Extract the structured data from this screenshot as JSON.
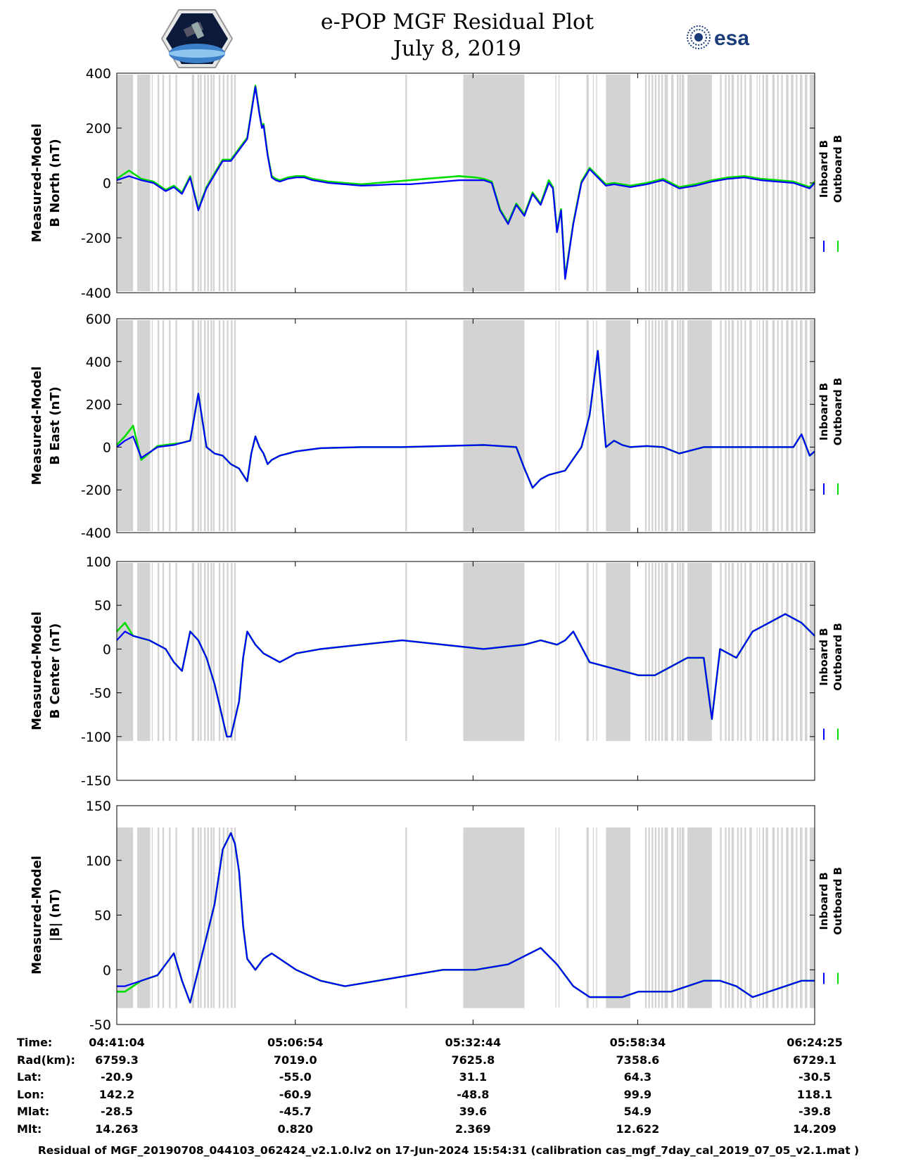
{
  "header": {
    "title_line1": "e-POP MGF Residual Plot",
    "title_line2": "July 8, 2019",
    "logo_left": "CASSIOPE",
    "logo_right": "esa"
  },
  "colors": {
    "inboard": "#0000ff",
    "outboard": "#00dd00",
    "gap_shading": "#d3d3d3"
  },
  "chart_data": [
    {
      "type": "line",
      "ylabel": [
        "Measured-Model",
        "B North (nT)"
      ],
      "ylim": [
        -400,
        400
      ],
      "yticks": [
        -400,
        -200,
        0,
        200,
        400
      ],
      "x": [
        0,
        150,
        300,
        450,
        600,
        700,
        800,
        900,
        1000,
        1100,
        1200,
        1300,
        1400,
        1500,
        1600,
        1700,
        1750,
        1780,
        1800,
        1850,
        1900,
        1950,
        2000,
        2100,
        2200,
        2300,
        2400,
        2500,
        2600,
        2800,
        3000,
        3200,
        3400,
        3600,
        3800,
        4000,
        4200,
        4400,
        4500,
        4600,
        4700,
        4800,
        4900,
        5000,
        5100,
        5200,
        5300,
        5350,
        5400,
        5450,
        5500,
        5600,
        5700,
        5800,
        5900,
        6000,
        6100,
        6300,
        6500,
        6700,
        6900,
        7100,
        7300,
        7500,
        7700,
        7900,
        8100,
        8300,
        8500,
        8561
      ],
      "series": [
        {
          "name": "Inboard B",
          "values": [
            10,
            25,
            10,
            0,
            -30,
            -15,
            -40,
            20,
            -100,
            -20,
            30,
            80,
            80,
            120,
            160,
            350,
            250,
            200,
            210,
            100,
            20,
            10,
            5,
            15,
            20,
            20,
            10,
            5,
            0,
            -5,
            -10,
            -8,
            -5,
            -5,
            0,
            5,
            10,
            10,
            10,
            0,
            -100,
            -150,
            -80,
            -120,
            -40,
            -80,
            0,
            -20,
            -180,
            -100,
            -350,
            -150,
            0,
            50,
            20,
            -10,
            -5,
            -15,
            -5,
            10,
            -20,
            -10,
            5,
            15,
            20,
            10,
            5,
            0,
            -20,
            0
          ]
        },
        {
          "name": "Outboard B",
          "values": [
            15,
            45,
            15,
            5,
            -25,
            -10,
            -35,
            25,
            -95,
            -15,
            35,
            85,
            85,
            125,
            165,
            355,
            255,
            205,
            215,
            105,
            25,
            15,
            10,
            20,
            25,
            25,
            15,
            10,
            5,
            0,
            -5,
            0,
            5,
            10,
            15,
            20,
            25,
            20,
            15,
            5,
            -95,
            -145,
            -75,
            -115,
            -35,
            -75,
            10,
            -15,
            -175,
            -95,
            -345,
            -145,
            5,
            55,
            25,
            -5,
            0,
            -10,
            0,
            15,
            -15,
            -5,
            10,
            20,
            25,
            15,
            10,
            5,
            -15,
            5
          ]
        }
      ]
    },
    {
      "type": "line",
      "ylabel": [
        "Measured-Model",
        "B East (nT)"
      ],
      "ylim": [
        -400,
        600
      ],
      "yticks": [
        -400,
        -200,
        0,
        200,
        400,
        600
      ],
      "x": [
        0,
        100,
        200,
        300,
        500,
        700,
        800,
        900,
        1000,
        1100,
        1200,
        1300,
        1400,
        1500,
        1600,
        1650,
        1700,
        1750,
        1800,
        1850,
        1900,
        2000,
        2200,
        2500,
        3000,
        3500,
        4000,
        4500,
        4900,
        5000,
        5100,
        5200,
        5300,
        5500,
        5700,
        5800,
        5900,
        6000,
        6100,
        6200,
        6300,
        6500,
        6700,
        6900,
        7200,
        7500,
        7800,
        8100,
        8300,
        8400,
        8500,
        8561
      ],
      "series": [
        {
          "name": "Inboard B",
          "values": [
            0,
            30,
            50,
            -50,
            0,
            10,
            20,
            30,
            250,
            0,
            -30,
            -40,
            -80,
            -100,
            -160,
            -30,
            50,
            0,
            -30,
            -80,
            -60,
            -40,
            -20,
            -5,
            0,
            0,
            5,
            10,
            0,
            -100,
            -190,
            -150,
            -130,
            -110,
            0,
            150,
            450,
            0,
            30,
            10,
            0,
            5,
            0,
            -30,
            0,
            0,
            0,
            0,
            0,
            60,
            -40,
            -20
          ]
        },
        {
          "name": "Outboard B",
          "values": [
            10,
            50,
            100,
            -60,
            5,
            15,
            20,
            30,
            250,
            0,
            -30,
            -40,
            -80,
            -100,
            -160,
            -30,
            50,
            0,
            -30,
            -80,
            -60,
            -40,
            -20,
            -5,
            0,
            0,
            5,
            10,
            0,
            -100,
            -190,
            -150,
            -130,
            -110,
            0,
            150,
            450,
            0,
            30,
            10,
            0,
            5,
            0,
            -30,
            0,
            0,
            0,
            0,
            0,
            60,
            -40,
            -20
          ]
        }
      ]
    },
    {
      "type": "line",
      "ylabel": [
        "Measured-Model",
        "B Center (nT)"
      ],
      "ylim": [
        -150,
        100
      ],
      "yticks": [
        -150,
        -100,
        -50,
        0,
        50,
        100
      ],
      "x": [
        0,
        100,
        200,
        400,
        600,
        700,
        800,
        900,
        1000,
        1100,
        1200,
        1300,
        1350,
        1400,
        1500,
        1550,
        1600,
        1700,
        1800,
        2000,
        2200,
        2500,
        3000,
        3500,
        4000,
        4500,
        5000,
        5200,
        5400,
        5500,
        5600,
        5800,
        6000,
        6200,
        6400,
        6600,
        6800,
        7000,
        7200,
        7300,
        7400,
        7600,
        7800,
        8000,
        8200,
        8400,
        8561
      ],
      "series": [
        {
          "name": "Inboard B",
          "values": [
            10,
            20,
            15,
            10,
            0,
            -15,
            -25,
            20,
            10,
            -10,
            -40,
            -80,
            -100,
            -100,
            -60,
            -10,
            20,
            5,
            -5,
            -15,
            -5,
            0,
            5,
            10,
            5,
            0,
            5,
            10,
            5,
            10,
            20,
            -15,
            -20,
            -25,
            -30,
            -30,
            -20,
            -10,
            -10,
            -80,
            0,
            -10,
            20,
            30,
            40,
            30,
            15
          ]
        },
        {
          "name": "Outboard B",
          "values": [
            20,
            30,
            15,
            10,
            0,
            -15,
            -25,
            20,
            10,
            -10,
            -40,
            -80,
            -100,
            -100,
            -60,
            -10,
            20,
            5,
            -5,
            -15,
            -5,
            0,
            5,
            10,
            5,
            0,
            5,
            10,
            5,
            10,
            20,
            -15,
            -20,
            -25,
            -30,
            -30,
            -20,
            -10,
            -10,
            -80,
            0,
            -10,
            20,
            30,
            40,
            30,
            15
          ]
        }
      ]
    },
    {
      "type": "line",
      "ylabel": [
        "Measured-Model",
        "|B| (nT)"
      ],
      "ylim": [
        -50,
        150
      ],
      "yticks": [
        -50,
        0,
        50,
        100,
        150
      ],
      "x": [
        0,
        100,
        300,
        500,
        700,
        800,
        900,
        1000,
        1100,
        1200,
        1300,
        1400,
        1450,
        1500,
        1550,
        1600,
        1700,
        1800,
        1900,
        2000,
        2200,
        2500,
        2800,
        3200,
        3600,
        4000,
        4400,
        4800,
        5200,
        5400,
        5600,
        5800,
        6000,
        6200,
        6400,
        6600,
        6800,
        7000,
        7200,
        7400,
        7600,
        7800,
        8000,
        8200,
        8400,
        8561
      ],
      "series": [
        {
          "name": "Inboard B",
          "values": [
            -15,
            -15,
            -10,
            -5,
            15,
            -10,
            -30,
            0,
            30,
            60,
            110,
            125,
            115,
            90,
            40,
            10,
            0,
            10,
            15,
            10,
            0,
            -10,
            -15,
            -10,
            -5,
            0,
            0,
            5,
            20,
            5,
            -15,
            -25,
            -25,
            -25,
            -20,
            -20,
            -20,
            -15,
            -10,
            -10,
            -15,
            -25,
            -20,
            -15,
            -10,
            -10
          ]
        },
        {
          "name": "Outboard B",
          "values": [
            -20,
            -20,
            -10,
            -5,
            15,
            -10,
            -30,
            0,
            30,
            60,
            110,
            125,
            115,
            90,
            40,
            10,
            0,
            10,
            15,
            10,
            0,
            -10,
            -15,
            -10,
            -5,
            0,
            0,
            5,
            20,
            5,
            -15,
            -25,
            -25,
            -25,
            -20,
            -20,
            -20,
            -15,
            -10,
            -10,
            -15,
            -25,
            -20,
            -15,
            -10,
            -10
          ]
        }
      ]
    }
  ],
  "gaps": [
    [
      0,
      200
    ],
    [
      250,
      400
    ],
    [
      400,
      410
    ],
    [
      430,
      440
    ],
    [
      500,
      520
    ],
    [
      560,
      580
    ],
    [
      640,
      660
    ],
    [
      720,
      740
    ],
    [
      920,
      950
    ],
    [
      990,
      1010
    ],
    [
      1020,
      1040
    ],
    [
      1070,
      1090
    ],
    [
      1110,
      1130
    ],
    [
      1150,
      1170
    ],
    [
      1180,
      1200
    ],
    [
      1250,
      1270
    ],
    [
      1300,
      1320
    ],
    [
      1350,
      1370
    ],
    [
      1400,
      1420
    ],
    [
      1440,
      1460
    ],
    [
      3540,
      3560
    ],
    [
      4250,
      5000
    ],
    [
      5380,
      5390
    ],
    [
      5420,
      5430
    ],
    [
      5760,
      5790
    ],
    [
      5840,
      5850
    ],
    [
      5880,
      5890
    ],
    [
      6000,
      6300
    ],
    [
      6480,
      6500
    ],
    [
      6520,
      6540
    ],
    [
      6560,
      6580
    ],
    [
      6600,
      6620
    ],
    [
      6640,
      6660
    ],
    [
      6680,
      6700
    ],
    [
      6720,
      6760
    ],
    [
      6800,
      6830
    ],
    [
      6870,
      6890
    ],
    [
      6900,
      6920
    ],
    [
      6930,
      6960
    ],
    [
      7000,
      7300
    ],
    [
      7400,
      7420
    ],
    [
      7460,
      7480
    ],
    [
      7500,
      7520
    ],
    [
      7540,
      7570
    ],
    [
      7610,
      7630
    ],
    [
      7650,
      7670
    ],
    [
      7700,
      7720
    ],
    [
      7760,
      7790
    ],
    [
      7850,
      7860
    ],
    [
      7880,
      7890
    ],
    [
      7920,
      7940
    ],
    [
      7960,
      7990
    ],
    [
      8040,
      8070
    ],
    [
      8100,
      8120
    ],
    [
      8150,
      8170
    ],
    [
      8210,
      8240
    ],
    [
      8270,
      8300
    ],
    [
      8330,
      8350
    ],
    [
      8380,
      8410
    ],
    [
      8440,
      8470
    ],
    [
      8500,
      8561
    ]
  ],
  "legend": {
    "inboard": "Inboard B",
    "outboard": "Outboard B"
  },
  "info_table": {
    "labels": [
      "Time:",
      "Rad(km):",
      "Lat:",
      "Lon:",
      "Mlat:",
      "Mlt:"
    ],
    "columns": [
      [
        "04:41:04",
        "6759.3",
        "-20.9",
        "142.2",
        "-28.5",
        "14.263"
      ],
      [
        "05:06:54",
        "7019.0",
        "-55.0",
        "-60.9",
        "-45.7",
        "0.820"
      ],
      [
        "05:32:44",
        "7625.8",
        "31.1",
        "-48.8",
        "39.6",
        "2.369"
      ],
      [
        "05:58:34",
        "7358.6",
        "64.3",
        "99.9",
        "54.9",
        "12.622"
      ],
      [
        "06:24:25",
        "6729.1",
        "-30.5",
        "118.1",
        "-39.8",
        "14.209"
      ]
    ]
  },
  "footer": "Residual of MGF_20190708_044103_062424_v2.1.0.lv2 on 17-Jun-2024 15:54:31 (calibration cas_mgf_7day_cal_2019_07_05_v2.1.mat )"
}
